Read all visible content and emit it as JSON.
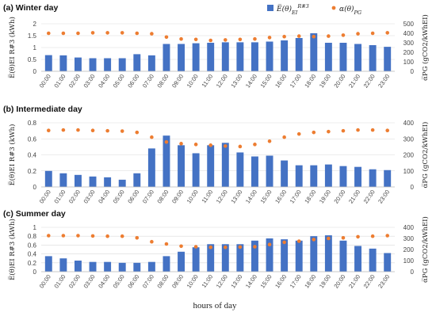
{
  "legend": {
    "bar_label": "E̅(θ)",
    "bar_sup": "R#3",
    "bar_sub": "EI",
    "dot_label": "α(θ)",
    "dot_sub": "PG"
  },
  "xlabel": "hours of day",
  "colors": {
    "bar": "#4472c4",
    "dot": "#ed7d31"
  },
  "chart_data": [
    {
      "type": "bar",
      "title": "(a) Winter day",
      "ylabel": "E̅(θ)EI R#3 (kWh)",
      "ylabel_right": "α̅PG (gCO2/kWhEI)",
      "categories": [
        "00:00",
        "01:00",
        "02:00",
        "03:00",
        "04:00",
        "05:00",
        "06:00",
        "07:00",
        "08:00",
        "09:00",
        "10:00",
        "11:00",
        "12:00",
        "13:00",
        "14:00",
        "15:00",
        "16:00",
        "17:00",
        "18:00",
        "19:00",
        "20:00",
        "21:00",
        "22:00",
        "23:00"
      ],
      "yticks": [
        "0",
        "0.5",
        "1",
        "1.5",
        "2"
      ],
      "yticks_right": [
        "0",
        "100",
        "200",
        "300",
        "400",
        "500"
      ],
      "ylim": [
        0,
        2
      ],
      "ylim_right": [
        0,
        500
      ],
      "series": [
        {
          "name": "E̅(θ)EI R#3",
          "values": [
            0.68,
            0.67,
            0.58,
            0.55,
            0.55,
            0.55,
            0.72,
            0.67,
            1.15,
            1.15,
            1.18,
            1.2,
            1.22,
            1.22,
            1.22,
            1.25,
            1.3,
            1.4,
            1.6,
            1.2,
            1.2,
            1.15,
            1.1,
            1.03
          ]
        },
        {
          "name": "α(θ)PG",
          "values": [
            400,
            400,
            400,
            405,
            405,
            405,
            400,
            395,
            360,
            340,
            335,
            325,
            330,
            335,
            340,
            355,
            365,
            370,
            365,
            370,
            380,
            395,
            400,
            405
          ]
        }
      ]
    },
    {
      "type": "bar",
      "title": "(b) Intermediate day",
      "ylabel": "E̅(θ)EI R#3 (kWh)",
      "ylabel_right": "α̅PG (gCO2/kWhEI)",
      "categories": [
        "00:00",
        "01:00",
        "02:00",
        "03:00",
        "04:00",
        "05:00",
        "06:00",
        "07:00",
        "08:00",
        "09:00",
        "10:00",
        "11:00",
        "12:00",
        "13:00",
        "14:00",
        "15:00",
        "16:00",
        "17:00",
        "18:00",
        "19:00",
        "20:00",
        "21:00",
        "22:00",
        "23:00"
      ],
      "yticks": [
        "0",
        "0.2",
        "0.4",
        "0.6",
        "0.8"
      ],
      "yticks_right": [
        "0",
        "100",
        "200",
        "300",
        "400"
      ],
      "ylim": [
        0,
        0.8
      ],
      "ylim_right": [
        0,
        400
      ],
      "series": [
        {
          "name": "E̅(θ)EI R#3",
          "values": [
            0.2,
            0.17,
            0.15,
            0.13,
            0.12,
            0.09,
            0.17,
            0.48,
            0.64,
            0.52,
            0.42,
            0.52,
            0.55,
            0.43,
            0.38,
            0.39,
            0.33,
            0.27,
            0.27,
            0.28,
            0.26,
            0.25,
            0.22,
            0.21
          ]
        },
        {
          "name": "α(θ)PG",
          "values": [
            352,
            355,
            355,
            352,
            350,
            348,
            340,
            310,
            280,
            270,
            265,
            260,
            255,
            252,
            265,
            285,
            310,
            330,
            340,
            345,
            350,
            355,
            355,
            352
          ]
        }
      ]
    },
    {
      "type": "bar",
      "title": "(c) Summer day",
      "ylabel": "E̅(θ)EI R#3 (kWh)",
      "ylabel_right": "α̅PG (gCO2/kWhEI)",
      "categories": [
        "00:00",
        "01:00",
        "02:00",
        "03:00",
        "04:00",
        "05:00",
        "06:00",
        "07:00",
        "08:00",
        "09:00",
        "10:00",
        "11:00",
        "12:00",
        "13:00",
        "14:00",
        "15:00",
        "16:00",
        "17:00",
        "18:00",
        "19:00",
        "20:00",
        "21:00",
        "22:00",
        "23:00"
      ],
      "yticks": [
        "0",
        "0.2",
        "0.4",
        "0.6",
        "0.8",
        "1"
      ],
      "yticks_right": [
        "0",
        "100",
        "200",
        "300",
        "400"
      ],
      "ylim": [
        0,
        1
      ],
      "ylim_right": [
        0,
        400
      ],
      "series": [
        {
          "name": "E̅(θ)EI R#3",
          "values": [
            0.35,
            0.3,
            0.25,
            0.22,
            0.22,
            0.2,
            0.2,
            0.22,
            0.35,
            0.45,
            0.55,
            0.62,
            0.62,
            0.62,
            0.7,
            0.75,
            0.73,
            0.7,
            0.8,
            0.82,
            0.7,
            0.58,
            0.52,
            0.42
          ]
        },
        {
          "name": "α(θ)PG",
          "values": [
            325,
            325,
            325,
            322,
            320,
            320,
            305,
            270,
            250,
            230,
            225,
            220,
            220,
            222,
            225,
            245,
            265,
            275,
            290,
            300,
            305,
            315,
            320,
            325
          ]
        }
      ]
    }
  ]
}
